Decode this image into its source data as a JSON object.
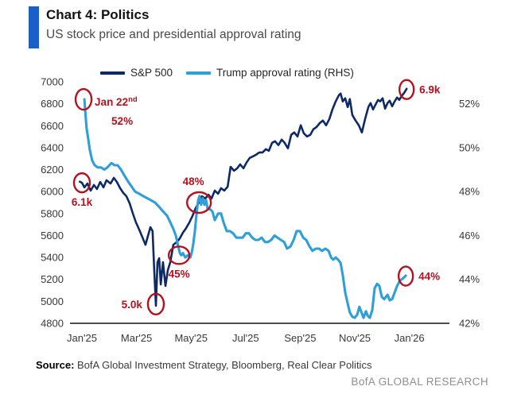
{
  "header": {
    "title": "Chart 4: Politics",
    "subtitle": "US stock price and presidential approval rating"
  },
  "footer": {
    "source_label": "Source:",
    "source_text": " BofA Global Investment Strategy, Bloomberg, Real Clear Politics",
    "brand": "BofA GLOBAL RESEARCH"
  },
  "colors": {
    "accent": "#1a5fc9",
    "sp500": "#0e2a66",
    "approval": "#2e9fd8",
    "annotation": "#b5121f",
    "axis_line": "#4d4d4d"
  },
  "chart_data": {
    "type": "line",
    "title": "US stock price and presidential approval rating",
    "x_axis": {
      "tick_labels": [
        "Jan'25",
        "Mar'25",
        "May'25",
        "Jul'25",
        "Sep'25",
        "Nov'25",
        "Jan'26"
      ],
      "tick_months": [
        0,
        2,
        4,
        6,
        8,
        10,
        12
      ]
    },
    "y_left": {
      "min": 4800,
      "max": 7000,
      "step": 200,
      "applies_to": "S&P 500"
    },
    "y_right": {
      "min": 42,
      "max": 52,
      "step": 2,
      "unit": "%",
      "applies_to": "Trump approval rating"
    },
    "grid": false,
    "legend_position": "top",
    "series": [
      {
        "name": "S&P 500",
        "axis": "left",
        "points": [
          [
            -0.08,
            6090
          ],
          [
            0.0,
            6081
          ],
          [
            0.09,
            6038
          ],
          [
            0.2,
            6074
          ],
          [
            0.32,
            6009
          ],
          [
            0.44,
            6060
          ],
          [
            0.55,
            6023
          ],
          [
            0.67,
            6088
          ],
          [
            0.79,
            6038
          ],
          [
            0.9,
            6103
          ],
          [
            1.05,
            6074
          ],
          [
            1.17,
            6125
          ],
          [
            1.28,
            6088
          ],
          [
            1.4,
            6031
          ],
          [
            1.52,
            5987
          ],
          [
            1.63,
            5958
          ],
          [
            1.75,
            5893
          ],
          [
            1.87,
            5799
          ],
          [
            1.98,
            5719
          ],
          [
            2.1,
            5654
          ],
          [
            2.22,
            5582
          ],
          [
            2.33,
            5516
          ],
          [
            2.42,
            5596
          ],
          [
            2.51,
            5676
          ],
          [
            2.59,
            5640
          ],
          [
            2.65,
            5285
          ],
          [
            2.71,
            4959
          ],
          [
            2.77,
            5357
          ],
          [
            2.83,
            5393
          ],
          [
            2.89,
            5154
          ],
          [
            2.97,
            5357
          ],
          [
            3.06,
            5140
          ],
          [
            3.15,
            5285
          ],
          [
            3.24,
            5357
          ],
          [
            3.35,
            5516
          ],
          [
            3.47,
            5538
          ],
          [
            3.59,
            5574
          ],
          [
            3.7,
            5625
          ],
          [
            3.82,
            5668
          ],
          [
            3.94,
            5719
          ],
          [
            4.05,
            5777
          ],
          [
            4.17,
            5849
          ],
          [
            4.29,
            5900
          ],
          [
            4.4,
            5958
          ],
          [
            4.52,
            5936
          ],
          [
            4.64,
            5972
          ],
          [
            4.75,
            5936
          ],
          [
            4.87,
            6009
          ],
          [
            4.99,
            5980
          ],
          [
            5.1,
            6031
          ],
          [
            5.22,
            6009
          ],
          [
            5.34,
            6045
          ],
          [
            5.45,
            6226
          ],
          [
            5.57,
            6190
          ],
          [
            5.69,
            6212
          ],
          [
            5.8,
            6248
          ],
          [
            5.92,
            6212
          ],
          [
            6.03,
            6263
          ],
          [
            6.15,
            6307
          ],
          [
            6.27,
            6321
          ],
          [
            6.38,
            6336
          ],
          [
            6.5,
            6357
          ],
          [
            6.62,
            6357
          ],
          [
            6.74,
            6386
          ],
          [
            6.85,
            6372
          ],
          [
            6.97,
            6444
          ],
          [
            7.08,
            6459
          ],
          [
            7.2,
            6423
          ],
          [
            7.32,
            6473
          ],
          [
            7.43,
            6444
          ],
          [
            7.55,
            6394
          ],
          [
            7.67,
            6517
          ],
          [
            7.78,
            6539
          ],
          [
            7.9,
            6502
          ],
          [
            8.02,
            6604
          ],
          [
            8.13,
            6531
          ],
          [
            8.25,
            6502
          ],
          [
            8.37,
            6517
          ],
          [
            8.48,
            6567
          ],
          [
            8.6,
            6589
          ],
          [
            8.72,
            6625
          ],
          [
            8.83,
            6647
          ],
          [
            8.95,
            6604
          ],
          [
            9.07,
            6662
          ],
          [
            9.18,
            6748
          ],
          [
            9.3,
            6821
          ],
          [
            9.42,
            6879
          ],
          [
            9.48,
            6893
          ],
          [
            9.56,
            6821
          ],
          [
            9.65,
            6850
          ],
          [
            9.74,
            6770
          ],
          [
            9.82,
            6843
          ],
          [
            9.91,
            6698
          ],
          [
            10.03,
            6647
          ],
          [
            10.15,
            6604
          ],
          [
            10.26,
            6538
          ],
          [
            10.38,
            6662
          ],
          [
            10.5,
            6770
          ],
          [
            10.58,
            6806
          ],
          [
            10.67,
            6748
          ],
          [
            10.76,
            6792
          ],
          [
            10.85,
            6835
          ],
          [
            10.93,
            6821
          ],
          [
            11.02,
            6850
          ],
          [
            11.11,
            6756
          ],
          [
            11.2,
            6806
          ],
          [
            11.28,
            6828
          ],
          [
            11.37,
            6777
          ],
          [
            11.46,
            6821
          ],
          [
            11.55,
            6857
          ],
          [
            11.63,
            6835
          ],
          [
            11.72,
            6871
          ],
          [
            11.81,
            6900
          ],
          [
            11.9,
            6936
          ]
        ]
      },
      {
        "name": "Trump approval rating (RHS)",
        "axis": "right",
        "points": [
          [
            0.09,
            52.2
          ],
          [
            0.12,
            51.7
          ],
          [
            0.17,
            50.9
          ],
          [
            0.23,
            50.4
          ],
          [
            0.29,
            49.9
          ],
          [
            0.38,
            49.4
          ],
          [
            0.47,
            49.2
          ],
          [
            0.58,
            49.1
          ],
          [
            0.7,
            49.1
          ],
          [
            0.82,
            49.0
          ],
          [
            0.93,
            49.1
          ],
          [
            1.08,
            49.3
          ],
          [
            1.2,
            49.2
          ],
          [
            1.31,
            49.2
          ],
          [
            1.43,
            49.0
          ],
          [
            1.57,
            48.7
          ],
          [
            1.72,
            48.4
          ],
          [
            1.84,
            48.2
          ],
          [
            1.95,
            48.0
          ],
          [
            2.1,
            47.9
          ],
          [
            2.24,
            47.8
          ],
          [
            2.39,
            47.7
          ],
          [
            2.54,
            47.6
          ],
          [
            2.68,
            47.5
          ],
          [
            2.83,
            47.3
          ],
          [
            2.97,
            47.1
          ],
          [
            3.12,
            46.9
          ],
          [
            3.24,
            46.6
          ],
          [
            3.35,
            46.3
          ],
          [
            3.44,
            46.0
          ],
          [
            3.53,
            45.5
          ],
          [
            3.59,
            45.2
          ],
          [
            3.64,
            45.1
          ],
          [
            3.7,
            45.2
          ],
          [
            3.79,
            45.0
          ],
          [
            3.88,
            45.1
          ],
          [
            3.97,
            45.0
          ],
          [
            4.02,
            45.2
          ],
          [
            4.08,
            45.6
          ],
          [
            4.14,
            46.2
          ],
          [
            4.2,
            47.0
          ],
          [
            4.26,
            47.6
          ],
          [
            4.31,
            47.8
          ],
          [
            4.37,
            47.4
          ],
          [
            4.43,
            47.7
          ],
          [
            4.49,
            47.4
          ],
          [
            4.55,
            47.6
          ],
          [
            4.61,
            47.2
          ],
          [
            4.69,
            47.2
          ],
          [
            4.78,
            47.1
          ],
          [
            4.87,
            46.7
          ],
          [
            4.99,
            47.0
          ],
          [
            5.1,
            47.0
          ],
          [
            5.19,
            46.6
          ],
          [
            5.31,
            46.2
          ],
          [
            5.42,
            46.2
          ],
          [
            5.54,
            46.1
          ],
          [
            5.66,
            45.9
          ],
          [
            5.77,
            45.9
          ],
          [
            5.89,
            45.9
          ],
          [
            6.01,
            46.1
          ],
          [
            6.12,
            46.1
          ],
          [
            6.24,
            45.9
          ],
          [
            6.36,
            45.8
          ],
          [
            6.47,
            45.8
          ],
          [
            6.59,
            45.9
          ],
          [
            6.71,
            45.7
          ],
          [
            6.82,
            45.7
          ],
          [
            6.94,
            45.8
          ],
          [
            7.06,
            46.0
          ],
          [
            7.17,
            45.9
          ],
          [
            7.29,
            45.8
          ],
          [
            7.41,
            45.7
          ],
          [
            7.52,
            45.4
          ],
          [
            7.64,
            45.5
          ],
          [
            7.76,
            45.8
          ],
          [
            7.87,
            46.2
          ],
          [
            7.99,
            46.2
          ],
          [
            8.11,
            45.9
          ],
          [
            8.22,
            45.8
          ],
          [
            8.34,
            45.5
          ],
          [
            8.45,
            45.3
          ],
          [
            8.57,
            45.4
          ],
          [
            8.69,
            45.4
          ],
          [
            8.8,
            45.3
          ],
          [
            8.92,
            45.4
          ],
          [
            9.04,
            45.3
          ],
          [
            9.13,
            45.0
          ],
          [
            9.21,
            44.9
          ],
          [
            9.3,
            45.0
          ],
          [
            9.39,
            44.9
          ],
          [
            9.48,
            44.75
          ],
          [
            9.56,
            44.2
          ],
          [
            9.65,
            43.4
          ],
          [
            9.74,
            42.9
          ],
          [
            9.82,
            42.5
          ],
          [
            9.91,
            42.3
          ],
          [
            10.0,
            42.25
          ],
          [
            10.09,
            42.4
          ],
          [
            10.17,
            42.75
          ],
          [
            10.23,
            42.55
          ],
          [
            10.32,
            42.25
          ],
          [
            10.41,
            42.55
          ],
          [
            10.47,
            42.35
          ],
          [
            10.55,
            42.25
          ],
          [
            10.64,
            42.6
          ],
          [
            10.73,
            43.6
          ],
          [
            10.82,
            43.8
          ],
          [
            10.9,
            43.7
          ],
          [
            10.99,
            43.2
          ],
          [
            11.08,
            43.1
          ],
          [
            11.2,
            43.3
          ],
          [
            11.28,
            43.05
          ],
          [
            11.37,
            43.1
          ],
          [
            11.46,
            43.4
          ],
          [
            11.55,
            43.7
          ],
          [
            11.66,
            43.95
          ],
          [
            11.78,
            44.06
          ],
          [
            11.87,
            44.17
          ]
        ]
      }
    ],
    "annotations": [
      {
        "id": "jan22",
        "series": "right",
        "month": 0.06,
        "value": 52.2,
        "label": "Jan 22",
        "sup": "nd",
        "label2": "52%",
        "placement": "special"
      },
      {
        "id": "sp-start",
        "series": "left",
        "month": 0.0,
        "value": 6080,
        "label": "6.1k",
        "placement": "below"
      },
      {
        "id": "cross-48",
        "series": "right",
        "month": 4.29,
        "value": 47.5,
        "label": "48%",
        "placement": "above"
      },
      {
        "id": "dip-45",
        "series": "right",
        "month": 3.56,
        "value": 45.1,
        "label": "45%",
        "placement": "below"
      },
      {
        "id": "low-5k",
        "series": "left",
        "month": 2.71,
        "value": 4975,
        "label": "5.0k",
        "placement": "left"
      },
      {
        "id": "end-69",
        "series": "left",
        "month": 11.9,
        "value": 6930,
        "label": "6.9k",
        "placement": "right"
      },
      {
        "id": "end-44",
        "series": "right",
        "month": 11.87,
        "value": 44.15,
        "label": "44%",
        "placement": "right"
      }
    ]
  }
}
